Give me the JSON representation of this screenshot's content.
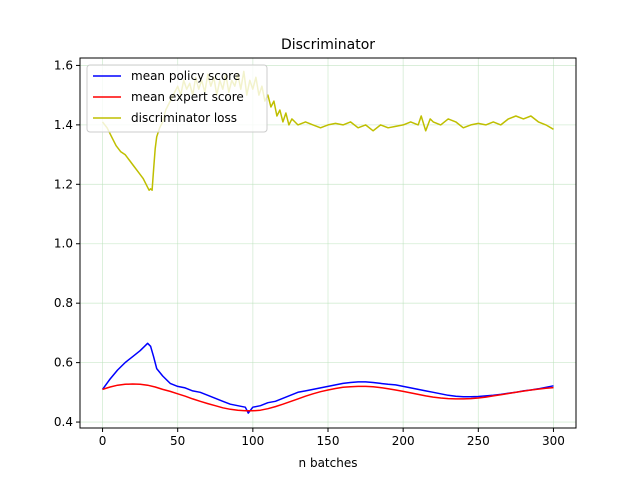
{
  "chart_data": {
    "type": "line",
    "title": "Discriminator",
    "xlabel": "n batches",
    "ylabel": "",
    "xlim": [
      -15,
      315
    ],
    "ylim": [
      0.38,
      1.625
    ],
    "xticks": [
      0,
      50,
      100,
      150,
      200,
      250,
      300
    ],
    "yticks": [
      0.4,
      0.6,
      0.8,
      1.0,
      1.2,
      1.4,
      1.6
    ],
    "ytick_labels": [
      "0.4",
      "0.6",
      "0.8",
      "1.0",
      "1.2",
      "1.4",
      "1.6"
    ],
    "grid": true,
    "grid_color": "#b7e0b7",
    "legend_position": "upper-left",
    "series": [
      {
        "name": "mean policy score",
        "color": "#0000ff",
        "points": [
          [
            0,
            0.51
          ],
          [
            5,
            0.545
          ],
          [
            10,
            0.575
          ],
          [
            15,
            0.6
          ],
          [
            20,
            0.62
          ],
          [
            25,
            0.64
          ],
          [
            28,
            0.655
          ],
          [
            30,
            0.665
          ],
          [
            32,
            0.655
          ],
          [
            34,
            0.62
          ],
          [
            36,
            0.58
          ],
          [
            40,
            0.555
          ],
          [
            45,
            0.53
          ],
          [
            50,
            0.52
          ],
          [
            55,
            0.515
          ],
          [
            60,
            0.505
          ],
          [
            65,
            0.5
          ],
          [
            70,
            0.49
          ],
          [
            75,
            0.48
          ],
          [
            80,
            0.47
          ],
          [
            85,
            0.46
          ],
          [
            90,
            0.455
          ],
          [
            95,
            0.45
          ],
          [
            97,
            0.43
          ],
          [
            100,
            0.45
          ],
          [
            105,
            0.455
          ],
          [
            110,
            0.465
          ],
          [
            115,
            0.47
          ],
          [
            120,
            0.48
          ],
          [
            125,
            0.49
          ],
          [
            130,
            0.5
          ],
          [
            135,
            0.505
          ],
          [
            140,
            0.51
          ],
          [
            145,
            0.515
          ],
          [
            150,
            0.52
          ],
          [
            155,
            0.525
          ],
          [
            160,
            0.53
          ],
          [
            165,
            0.533
          ],
          [
            170,
            0.535
          ],
          [
            175,
            0.535
          ],
          [
            180,
            0.533
          ],
          [
            185,
            0.53
          ],
          [
            190,
            0.527
          ],
          [
            195,
            0.525
          ],
          [
            200,
            0.52
          ],
          [
            205,
            0.515
          ],
          [
            210,
            0.51
          ],
          [
            215,
            0.505
          ],
          [
            220,
            0.5
          ],
          [
            225,
            0.495
          ],
          [
            230,
            0.49
          ],
          [
            235,
            0.487
          ],
          [
            240,
            0.485
          ],
          [
            245,
            0.485
          ],
          [
            250,
            0.486
          ],
          [
            255,
            0.488
          ],
          [
            260,
            0.49
          ],
          [
            265,
            0.493
          ],
          [
            270,
            0.497
          ],
          [
            275,
            0.5
          ],
          [
            280,
            0.505
          ],
          [
            285,
            0.508
          ],
          [
            290,
            0.512
          ],
          [
            295,
            0.517
          ],
          [
            300,
            0.522
          ]
        ]
      },
      {
        "name": "mean expert score",
        "color": "#ff0000",
        "points": [
          [
            0,
            0.51
          ],
          [
            5,
            0.518
          ],
          [
            10,
            0.524
          ],
          [
            15,
            0.527
          ],
          [
            20,
            0.528
          ],
          [
            25,
            0.527
          ],
          [
            30,
            0.524
          ],
          [
            35,
            0.518
          ],
          [
            40,
            0.51
          ],
          [
            45,
            0.503
          ],
          [
            50,
            0.495
          ],
          [
            55,
            0.487
          ],
          [
            60,
            0.478
          ],
          [
            65,
            0.47
          ],
          [
            70,
            0.462
          ],
          [
            75,
            0.455
          ],
          [
            80,
            0.448
          ],
          [
            85,
            0.443
          ],
          [
            90,
            0.44
          ],
          [
            95,
            0.438
          ],
          [
            100,
            0.438
          ],
          [
            105,
            0.44
          ],
          [
            110,
            0.445
          ],
          [
            115,
            0.452
          ],
          [
            120,
            0.46
          ],
          [
            125,
            0.469
          ],
          [
            130,
            0.478
          ],
          [
            135,
            0.487
          ],
          [
            140,
            0.495
          ],
          [
            145,
            0.502
          ],
          [
            150,
            0.508
          ],
          [
            155,
            0.513
          ],
          [
            160,
            0.517
          ],
          [
            165,
            0.519
          ],
          [
            170,
            0.52
          ],
          [
            175,
            0.52
          ],
          [
            180,
            0.519
          ],
          [
            185,
            0.516
          ],
          [
            190,
            0.512
          ],
          [
            195,
            0.508
          ],
          [
            200,
            0.503
          ],
          [
            205,
            0.498
          ],
          [
            210,
            0.493
          ],
          [
            215,
            0.488
          ],
          [
            220,
            0.484
          ],
          [
            225,
            0.481
          ],
          [
            230,
            0.479
          ],
          [
            235,
            0.478
          ],
          [
            240,
            0.478
          ],
          [
            245,
            0.479
          ],
          [
            250,
            0.481
          ],
          [
            255,
            0.484
          ],
          [
            260,
            0.488
          ],
          [
            265,
            0.492
          ],
          [
            270,
            0.496
          ],
          [
            275,
            0.5
          ],
          [
            280,
            0.504
          ],
          [
            285,
            0.508
          ],
          [
            290,
            0.511
          ],
          [
            295,
            0.514
          ],
          [
            300,
            0.516
          ]
        ]
      },
      {
        "name": "discriminator loss",
        "color": "#bfbf00",
        "points": [
          [
            0,
            1.41
          ],
          [
            3,
            1.39
          ],
          [
            6,
            1.36
          ],
          [
            9,
            1.33
          ],
          [
            12,
            1.31
          ],
          [
            15,
            1.3
          ],
          [
            18,
            1.28
          ],
          [
            21,
            1.26
          ],
          [
            24,
            1.24
          ],
          [
            27,
            1.22
          ],
          [
            30,
            1.19
          ],
          [
            31,
            1.18
          ],
          [
            32,
            1.185
          ],
          [
            33,
            1.18
          ],
          [
            34,
            1.25
          ],
          [
            35,
            1.32
          ],
          [
            36,
            1.36
          ],
          [
            38,
            1.39
          ],
          [
            40,
            1.41
          ],
          [
            42,
            1.45
          ],
          [
            44,
            1.47
          ],
          [
            46,
            1.49
          ],
          [
            48,
            1.51
          ],
          [
            50,
            1.53
          ],
          [
            52,
            1.5
          ],
          [
            54,
            1.55
          ],
          [
            56,
            1.52
          ],
          [
            58,
            1.54
          ],
          [
            60,
            1.5
          ],
          [
            62,
            1.56
          ],
          [
            64,
            1.52
          ],
          [
            66,
            1.55
          ],
          [
            68,
            1.51
          ],
          [
            70,
            1.57
          ],
          [
            72,
            1.53
          ],
          [
            74,
            1.56
          ],
          [
            76,
            1.5
          ],
          [
            78,
            1.55
          ],
          [
            80,
            1.52
          ],
          [
            82,
            1.57
          ],
          [
            84,
            1.51
          ],
          [
            86,
            1.55
          ],
          [
            88,
            1.53
          ],
          [
            90,
            1.57
          ],
          [
            92,
            1.52
          ],
          [
            94,
            1.58
          ],
          [
            96,
            1.5
          ],
          [
            98,
            1.55
          ],
          [
            100,
            1.52
          ],
          [
            102,
            1.56
          ],
          [
            104,
            1.5
          ],
          [
            106,
            1.53
          ],
          [
            108,
            1.48
          ],
          [
            110,
            1.5
          ],
          [
            112,
            1.46
          ],
          [
            114,
            1.48
          ],
          [
            116,
            1.43
          ],
          [
            118,
            1.45
          ],
          [
            120,
            1.41
          ],
          [
            122,
            1.44
          ],
          [
            124,
            1.4
          ],
          [
            126,
            1.42
          ],
          [
            130,
            1.4
          ],
          [
            135,
            1.41
          ],
          [
            140,
            1.4
          ],
          [
            145,
            1.39
          ],
          [
            150,
            1.4
          ],
          [
            155,
            1.405
          ],
          [
            160,
            1.4
          ],
          [
            165,
            1.41
          ],
          [
            170,
            1.39
          ],
          [
            175,
            1.4
          ],
          [
            180,
            1.38
          ],
          [
            185,
            1.4
          ],
          [
            190,
            1.39
          ],
          [
            195,
            1.395
          ],
          [
            200,
            1.4
          ],
          [
            205,
            1.41
          ],
          [
            210,
            1.4
          ],
          [
            212,
            1.43
          ],
          [
            215,
            1.38
          ],
          [
            218,
            1.42
          ],
          [
            220,
            1.41
          ],
          [
            225,
            1.4
          ],
          [
            230,
            1.42
          ],
          [
            235,
            1.41
          ],
          [
            240,
            1.39
          ],
          [
            245,
            1.4
          ],
          [
            250,
            1.405
          ],
          [
            255,
            1.4
          ],
          [
            260,
            1.41
          ],
          [
            265,
            1.4
          ],
          [
            270,
            1.42
          ],
          [
            275,
            1.43
          ],
          [
            280,
            1.42
          ],
          [
            285,
            1.43
          ],
          [
            290,
            1.41
          ],
          [
            295,
            1.4
          ],
          [
            300,
            1.385
          ]
        ]
      }
    ]
  }
}
